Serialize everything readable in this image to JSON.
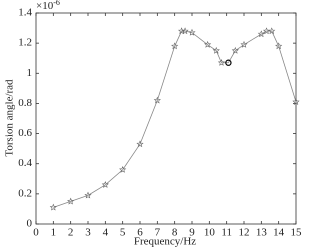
{
  "chart_data": {
    "type": "line",
    "xlabel": "Frequency/Hz",
    "ylabel": "Torsion angle/rad",
    "y_multiplier": {
      "base": "×10",
      "exponent": "-6"
    },
    "x": [
      1,
      2,
      3,
      4,
      5,
      6,
      7,
      8,
      8.4,
      8.6,
      9,
      9.9,
      10.4,
      10.7,
      11.1,
      11.5,
      12,
      13,
      13.3,
      13.6,
      14,
      15
    ],
    "series": [
      {
        "color": "#888888",
        "values": [
          0.11,
          0.15,
          0.19,
          0.26,
          0.36,
          0.53,
          0.82,
          1.18,
          1.28,
          1.28,
          1.27,
          1.19,
          1.15,
          1.07,
          1.07,
          1.15,
          1.19,
          1.26,
          1.28,
          1.28,
          1.18,
          0.81
        ]
      }
    ],
    "highlight_index": 14,
    "xlim": [
      0,
      15
    ],
    "xticks": [
      0,
      1,
      2,
      3,
      4,
      5,
      6,
      7,
      8,
      9,
      10,
      11,
      12,
      13,
      14,
      15
    ],
    "ylim": [
      0,
      1.4
    ],
    "yticks": [
      0,
      0.2,
      0.4,
      0.6,
      0.8,
      1,
      1.2,
      1.4
    ],
    "grid": false
  }
}
